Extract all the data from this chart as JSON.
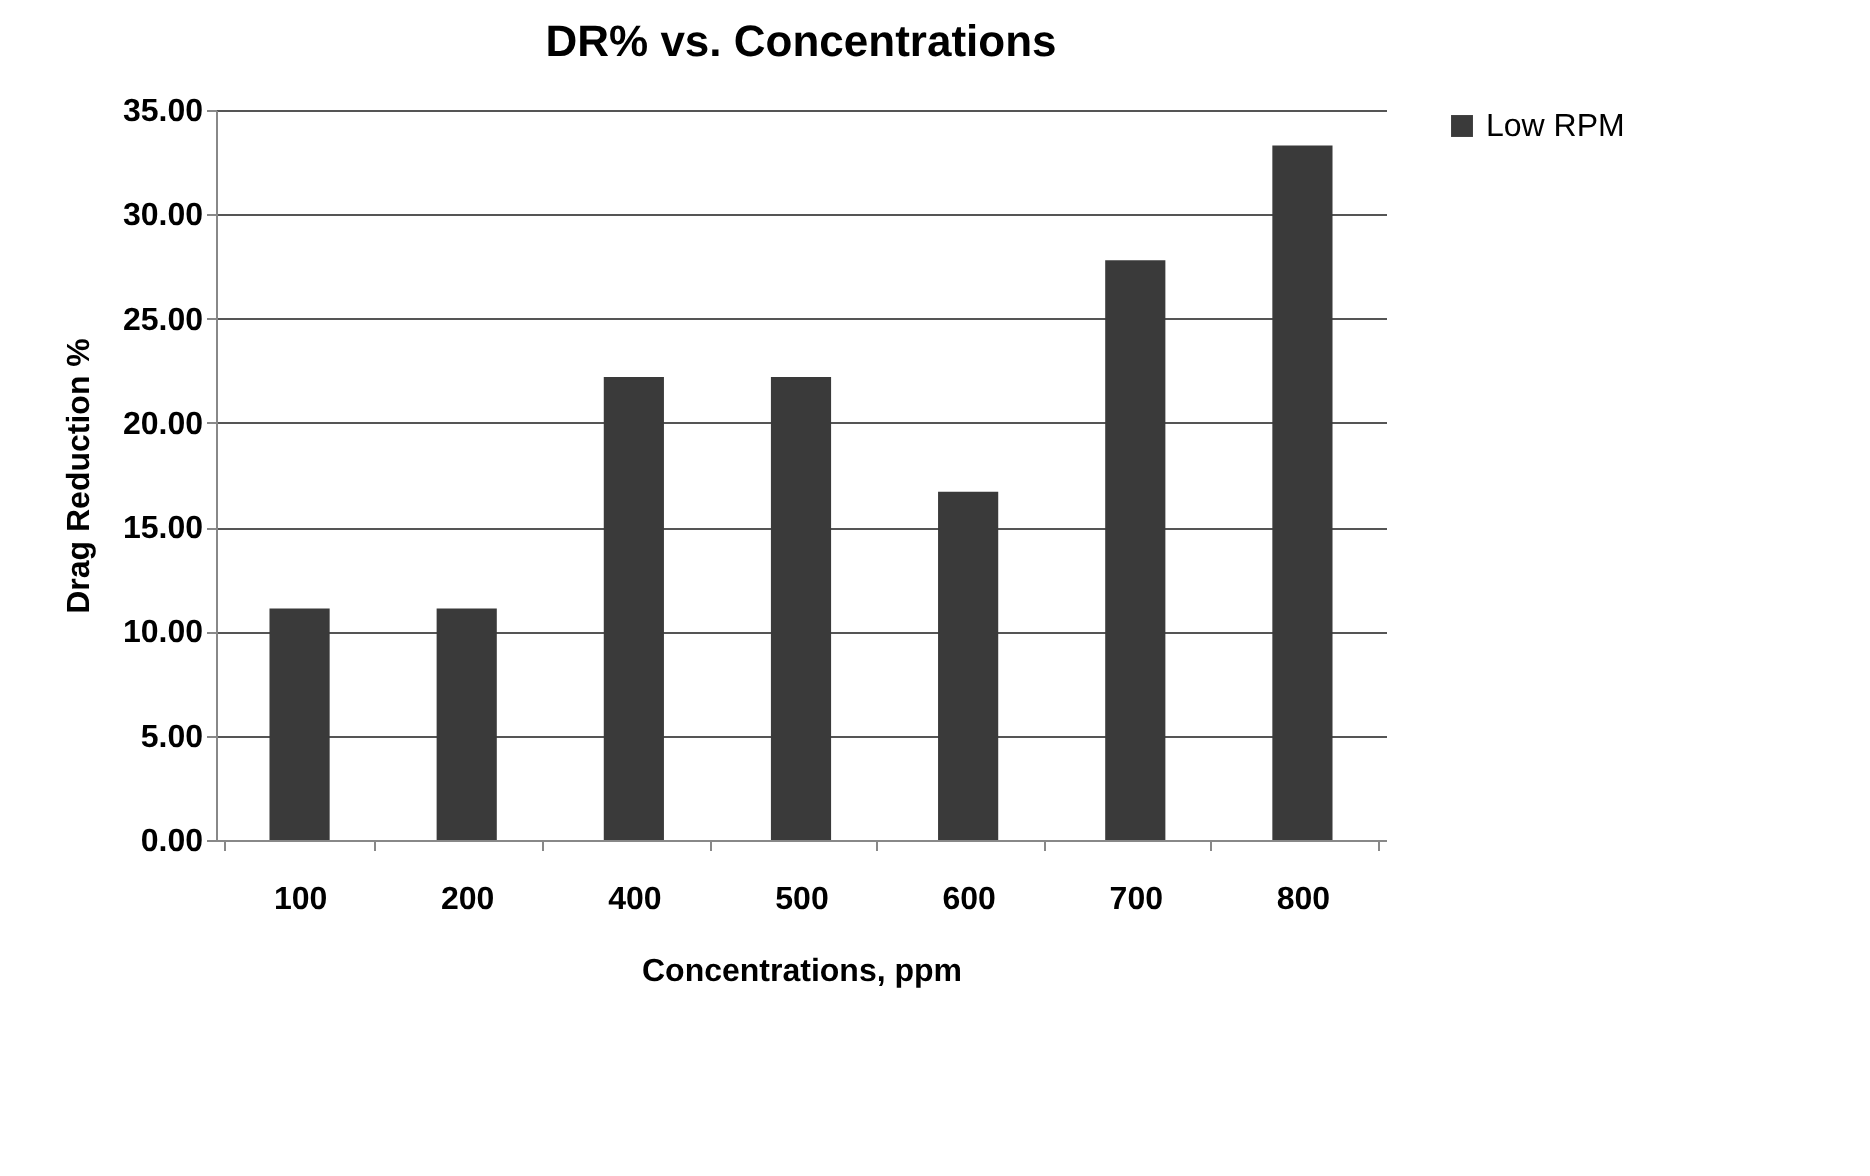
{
  "chart_data": {
    "type": "bar",
    "title": "DR% vs. Concentrations",
    "xlabel": "Concentrations, ppm",
    "ylabel": "Drag Reduction %",
    "categories": [
      "100",
      "200",
      "400",
      "500",
      "600",
      "700",
      "800"
    ],
    "series": [
      {
        "name": "Low RPM",
        "color": "#3a3a3a",
        "values": [
          11.1,
          11.1,
          22.2,
          22.2,
          16.7,
          27.8,
          33.3
        ]
      }
    ],
    "ylim": [
      0,
      35
    ],
    "yticks": [
      {
        "value": 0,
        "label": "0.00"
      },
      {
        "value": 5,
        "label": "5.00"
      },
      {
        "value": 10,
        "label": "10.00"
      },
      {
        "value": 15,
        "label": "15.00"
      },
      {
        "value": 20,
        "label": "20.00"
      },
      {
        "value": 25,
        "label": "25.00"
      },
      {
        "value": 30,
        "label": "30.00"
      },
      {
        "value": 35,
        "label": "35.00"
      }
    ],
    "grid": "y",
    "legend": "right"
  }
}
